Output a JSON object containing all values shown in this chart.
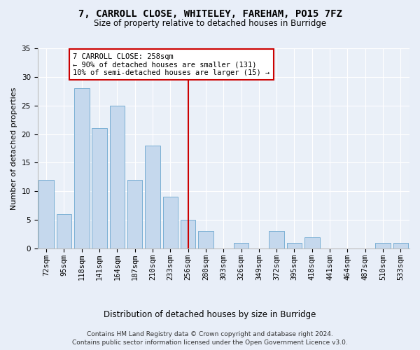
{
  "title1": "7, CARROLL CLOSE, WHITELEY, FAREHAM, PO15 7FZ",
  "title2": "Size of property relative to detached houses in Burridge",
  "xlabel": "Distribution of detached houses by size in Burridge",
  "ylabel": "Number of detached properties",
  "categories": [
    "72sqm",
    "95sqm",
    "118sqm",
    "141sqm",
    "164sqm",
    "187sqm",
    "210sqm",
    "233sqm",
    "256sqm",
    "280sqm",
    "303sqm",
    "326sqm",
    "349sqm",
    "372sqm",
    "395sqm",
    "418sqm",
    "441sqm",
    "464sqm",
    "487sqm",
    "510sqm",
    "533sqm"
  ],
  "values": [
    12,
    6,
    28,
    21,
    25,
    12,
    18,
    9,
    5,
    3,
    0,
    1,
    0,
    3,
    1,
    2,
    0,
    0,
    0,
    1,
    1
  ],
  "bar_color": "#c5d8ed",
  "bar_edge_color": "#7aafd4",
  "vline_x_index": 8,
  "vline_color": "#cc0000",
  "annotation_text": "7 CARROLL CLOSE: 258sqm\n← 90% of detached houses are smaller (131)\n10% of semi-detached houses are larger (15) →",
  "annotation_box_color": "#ffffff",
  "annotation_box_edge": "#cc0000",
  "ylim": [
    0,
    35
  ],
  "yticks": [
    0,
    5,
    10,
    15,
    20,
    25,
    30,
    35
  ],
  "footnote1": "Contains HM Land Registry data © Crown copyright and database right 2024.",
  "footnote2": "Contains public sector information licensed under the Open Government Licence v3.0.",
  "bg_color": "#e8eef8",
  "plot_bg_color": "#eaf0f8",
  "grid_color": "#ffffff",
  "title_fontsize": 10,
  "subtitle_fontsize": 8.5,
  "bar_width": 0.85,
  "annotation_fontsize": 7.5,
  "tick_fontsize": 7.5,
  "ylabel_fontsize": 8,
  "xlabel_fontsize": 8.5
}
